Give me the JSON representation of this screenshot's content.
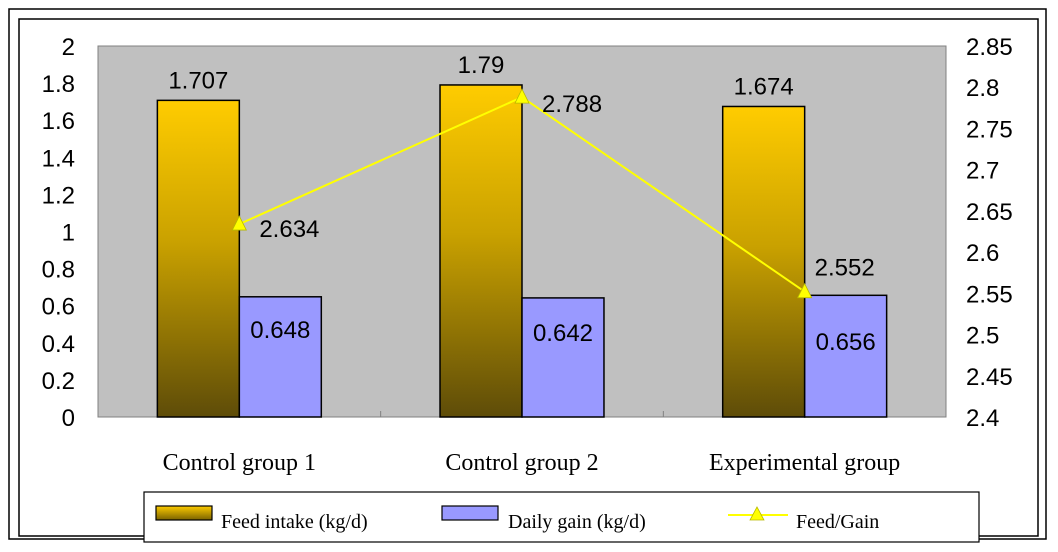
{
  "chart_data": {
    "type": "bar",
    "categories": [
      "Control group 1",
      "Control group 2",
      "Experimental group"
    ],
    "series": [
      {
        "name": "Feed intake (kg/d)",
        "type": "bar",
        "axis": "left",
        "values": [
          1.707,
          1.79,
          1.674
        ],
        "labels": [
          "1.707",
          "1.79",
          "1.674"
        ],
        "color": "#FFCC00"
      },
      {
        "name": "Daily gain (kg/d)",
        "type": "bar",
        "axis": "left",
        "values": [
          0.648,
          0.642,
          0.656
        ],
        "labels": [
          "0.648",
          "0.642",
          "0.656"
        ],
        "color": "#9999FF"
      },
      {
        "name": "Feed/Gain",
        "type": "line",
        "axis": "right",
        "values": [
          2.634,
          2.788,
          2.552
        ],
        "labels": [
          "2.634",
          "2.788",
          "2.552"
        ],
        "color": "#FFFF00",
        "marker": "triangle"
      }
    ],
    "left_axis": {
      "ylim": [
        0,
        2
      ],
      "ticks": [
        "0",
        "0.2",
        "0.4",
        "0.6",
        "0.8",
        "1",
        "1.2",
        "1.4",
        "1.6",
        "1.8",
        "2"
      ]
    },
    "right_axis": {
      "ylim": [
        2.4,
        2.85
      ],
      "ticks": [
        "2.4",
        "2.45",
        "2.5",
        "2.55",
        "2.6",
        "2.65",
        "2.7",
        "2.75",
        "2.8",
        "2.85"
      ]
    },
    "grid": false,
    "plot_background": "#C0C0C0",
    "legend_position": "bottom",
    "legend_labels": [
      "Feed intake (kg/d)",
      "Daily gain (kg/d)",
      "Feed/Gain"
    ]
  }
}
